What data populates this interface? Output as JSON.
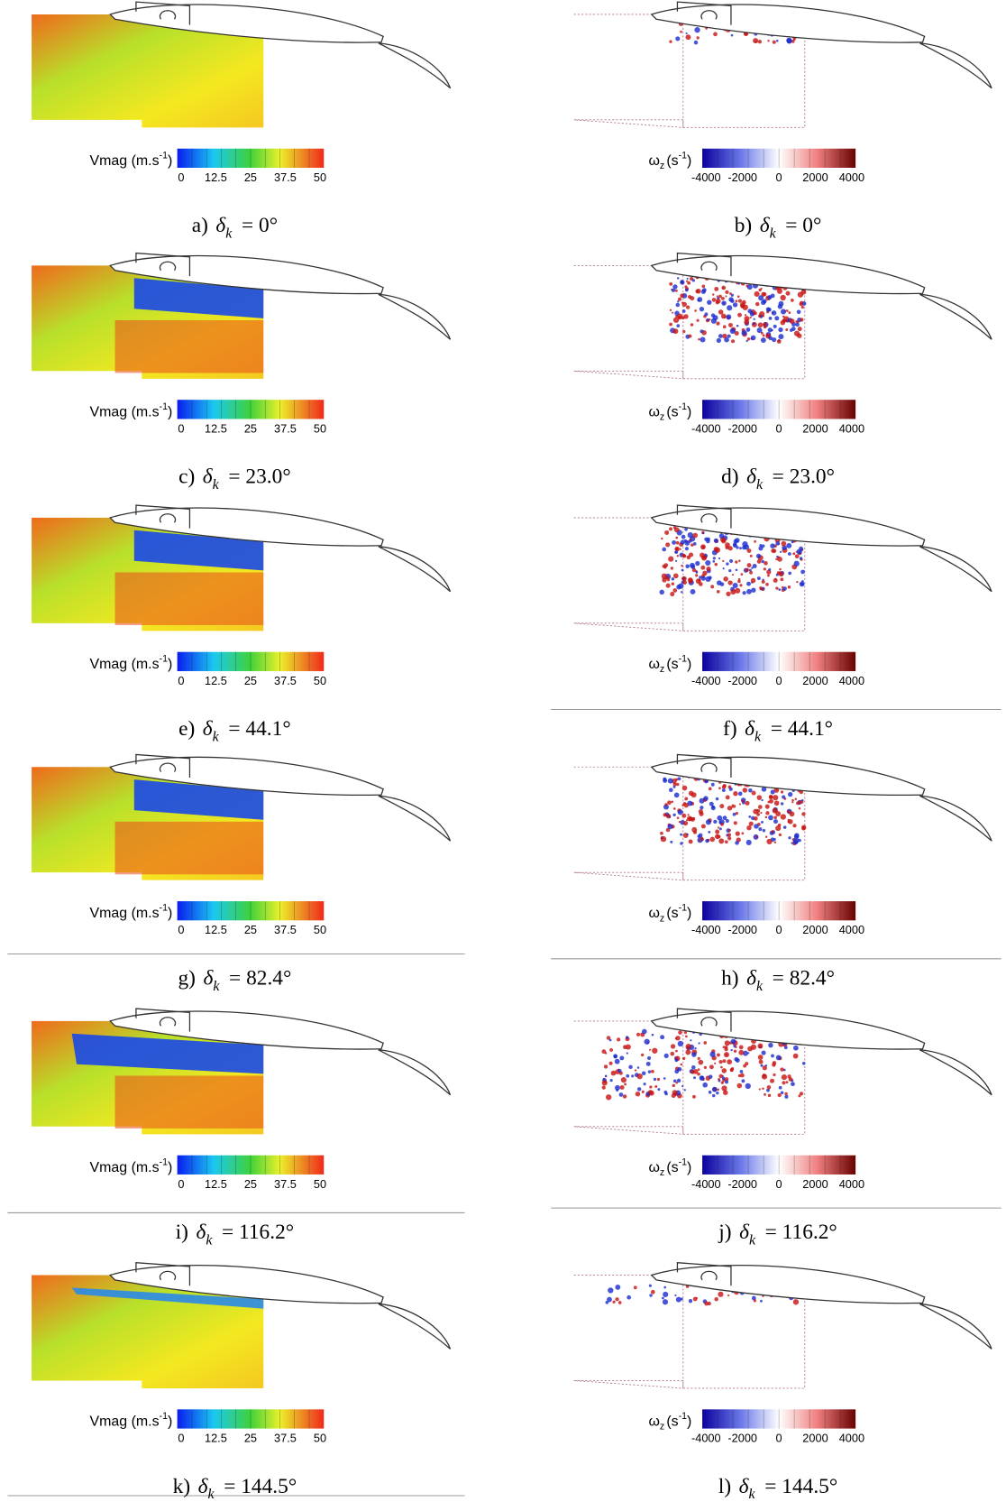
{
  "caption_symbol": "δ",
  "caption_subscript": "k",
  "velocity_colorbar": {
    "label": "Vmag (m.s",
    "exponent": "-1",
    "close": ")",
    "ticks": [
      0,
      12.5,
      25,
      37.5,
      50
    ]
  },
  "vorticity_colorbar": {
    "symbol": "ω",
    "subscript": "z",
    "unit_open": "(s",
    "exponent": "-1",
    "close": ")",
    "ticks": [
      -4000,
      -2000,
      0,
      2000,
      4000
    ]
  },
  "rows": [
    {
      "left": {
        "letter": "a)",
        "value": "= 0°"
      },
      "right": {
        "letter": "b)",
        "value": "= 0°"
      }
    },
    {
      "left": {
        "letter": "c)",
        "value": "= 23.0°"
      },
      "right": {
        "letter": "d)",
        "value": "= 23.0°"
      }
    },
    {
      "left": {
        "letter": "e)",
        "value": "= 44.1°"
      },
      "right": {
        "letter": "f)",
        "value": "= 44.1°"
      }
    },
    {
      "left": {
        "letter": "g)",
        "value": "= 82.4°"
      },
      "right": {
        "letter": "h)",
        "value": "= 82.4°"
      }
    },
    {
      "left": {
        "letter": "i)",
        "value": "= 116.2°"
      },
      "right": {
        "letter": "j)",
        "value": "= 116.2°"
      }
    },
    {
      "left": {
        "letter": "k)",
        "value": "= 144.5°"
      },
      "right": {
        "letter": "l)",
        "value": "= 144.5°"
      }
    }
  ]
}
